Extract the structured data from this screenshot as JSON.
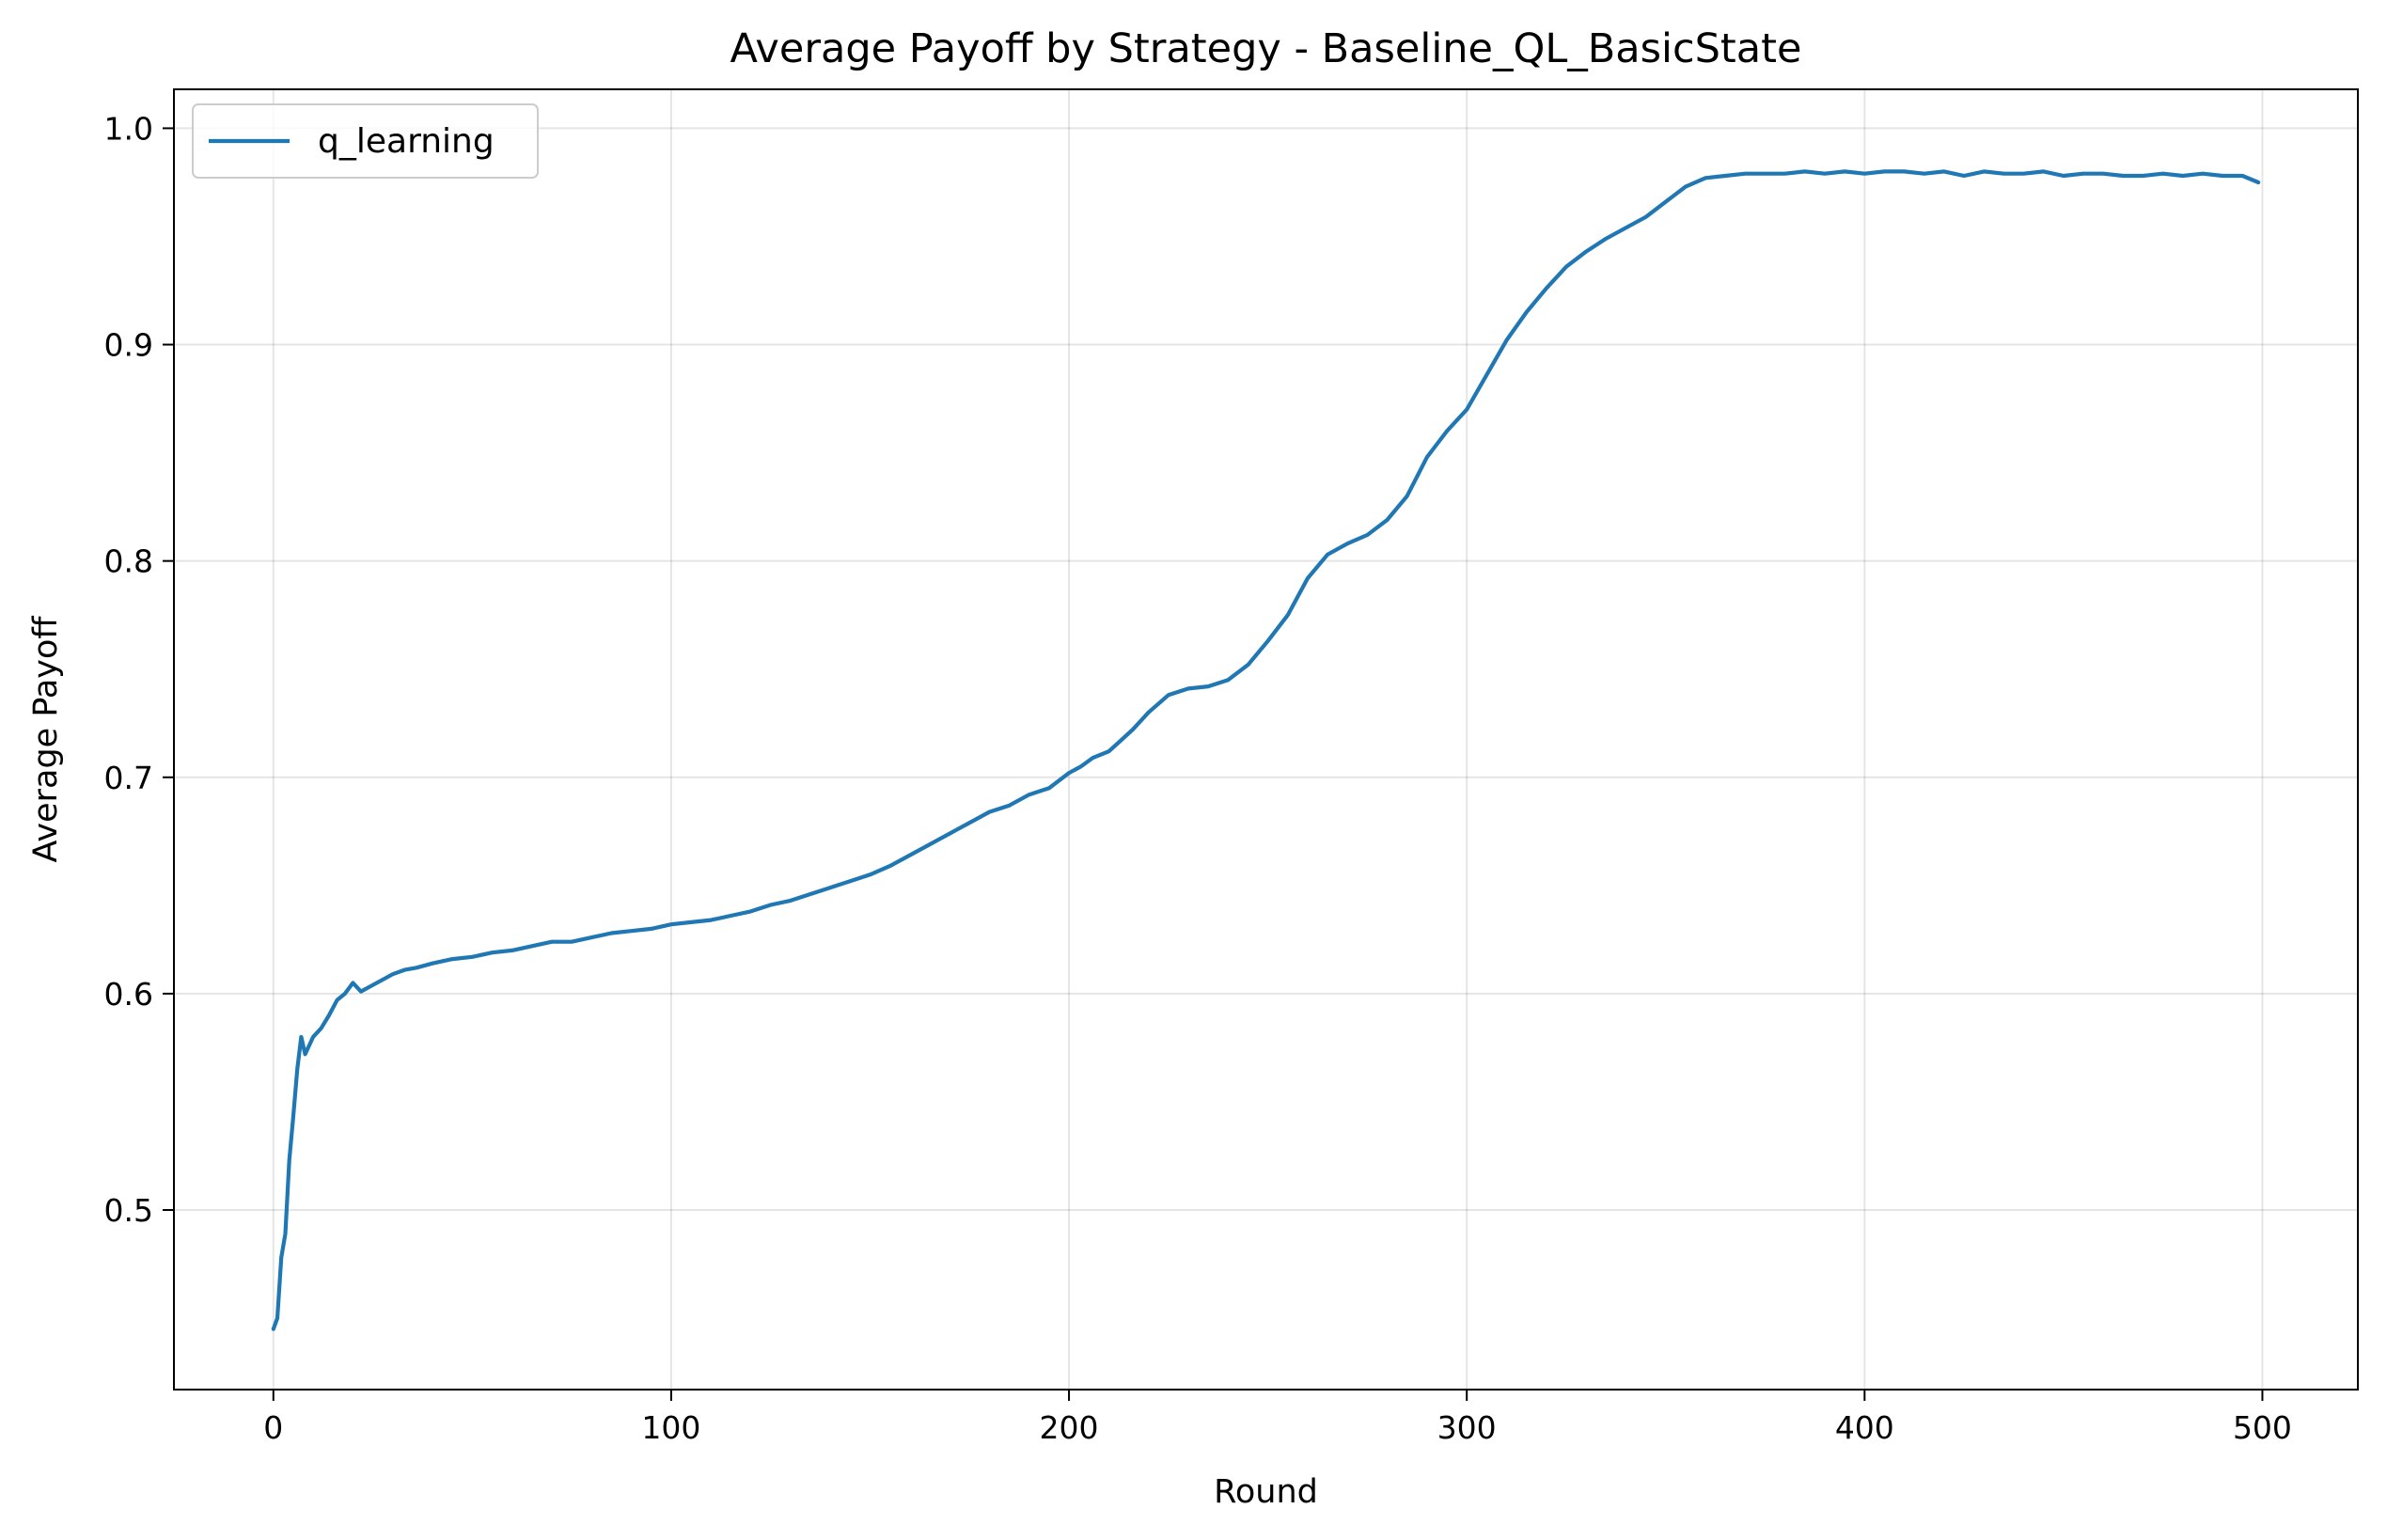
{
  "chart_data": {
    "type": "line",
    "title": "Average Payoff by Strategy - Baseline_QL_BasicState",
    "xlabel": "Round",
    "ylabel": "Average Payoff",
    "xlim": [
      -25,
      524
    ],
    "ylim": [
      0.417,
      1.018
    ],
    "xticks": [
      0,
      100,
      200,
      300,
      400,
      500
    ],
    "yticks": [
      0.5,
      0.6,
      0.7,
      0.8,
      0.9,
      1.0
    ],
    "xtick_labels": [
      "0",
      "100",
      "200",
      "300",
      "400",
      "500"
    ],
    "ytick_labels": [
      "0.5",
      "0.6",
      "0.7",
      "0.8",
      "0.9",
      "1.0"
    ],
    "grid": true,
    "legend_position": "top-left",
    "series": [
      {
        "name": "q_learning",
        "color": "#1f77b4",
        "x": [
          0,
          1,
          2,
          3,
          4,
          5,
          6,
          7,
          8,
          10,
          12,
          14,
          16,
          18,
          20,
          22,
          25,
          28,
          30,
          33,
          36,
          40,
          45,
          50,
          55,
          60,
          65,
          70,
          75,
          80,
          85,
          90,
          95,
          100,
          105,
          110,
          115,
          120,
          125,
          130,
          135,
          140,
          145,
          150,
          155,
          160,
          165,
          170,
          175,
          180,
          185,
          190,
          195,
          200,
          203,
          206,
          210,
          213,
          216,
          220,
          225,
          230,
          235,
          240,
          245,
          250,
          255,
          260,
          265,
          270,
          275,
          280,
          285,
          290,
          295,
          300,
          305,
          310,
          315,
          320,
          325,
          330,
          335,
          340,
          345,
          350,
          355,
          360,
          365,
          370,
          375,
          380,
          385,
          390,
          395,
          400,
          405,
          410,
          415,
          420,
          425,
          430,
          435,
          440,
          445,
          450,
          455,
          460,
          465,
          470,
          475,
          480,
          485,
          490,
          495,
          499
        ],
        "values": [
          0.445,
          0.45,
          0.478,
          0.489,
          0.523,
          0.543,
          0.565,
          0.58,
          0.572,
          0.58,
          0.584,
          0.59,
          0.597,
          0.6,
          0.605,
          0.601,
          0.604,
          0.607,
          0.609,
          0.611,
          0.612,
          0.614,
          0.616,
          0.617,
          0.619,
          0.62,
          0.622,
          0.624,
          0.624,
          0.626,
          0.628,
          0.629,
          0.63,
          0.632,
          0.633,
          0.634,
          0.636,
          0.638,
          0.641,
          0.643,
          0.646,
          0.649,
          0.652,
          0.655,
          0.659,
          0.664,
          0.669,
          0.674,
          0.679,
          0.684,
          0.687,
          0.692,
          0.695,
          0.702,
          0.705,
          0.709,
          0.712,
          0.717,
          0.722,
          0.73,
          0.738,
          0.741,
          0.742,
          0.745,
          0.752,
          0.763,
          0.775,
          0.792,
          0.803,
          0.808,
          0.812,
          0.819,
          0.83,
          0.848,
          0.86,
          0.87,
          0.886,
          0.902,
          0.915,
          0.926,
          0.936,
          0.943,
          0.949,
          0.954,
          0.959,
          0.966,
          0.973,
          0.977,
          0.978,
          0.979,
          0.979,
          0.979,
          0.98,
          0.979,
          0.98,
          0.979,
          0.98,
          0.98,
          0.979,
          0.98,
          0.978,
          0.98,
          0.979,
          0.979,
          0.98,
          0.978,
          0.979,
          0.979,
          0.978,
          0.978,
          0.979,
          0.978,
          0.979,
          0.978,
          0.978,
          0.975
        ]
      }
    ]
  }
}
